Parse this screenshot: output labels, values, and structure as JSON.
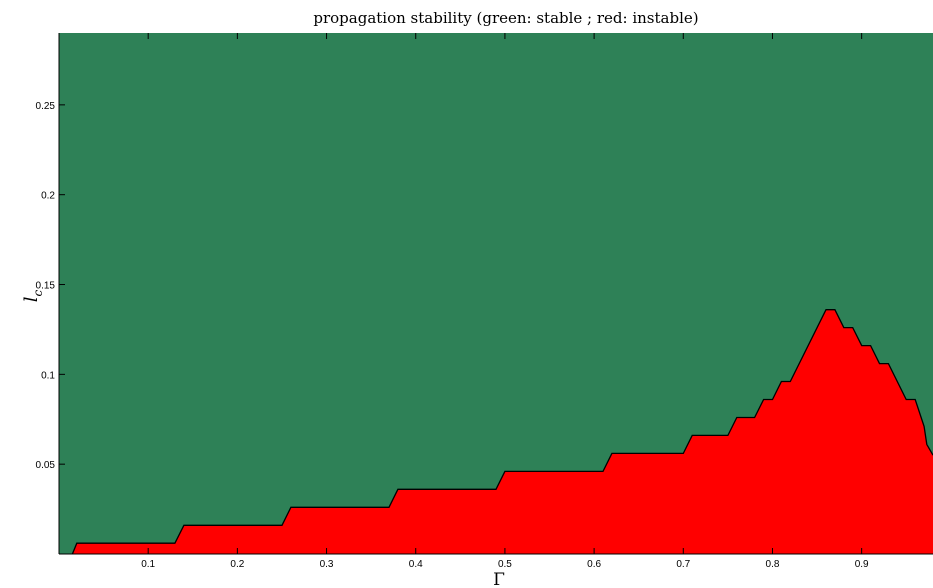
{
  "chart_data": {
    "type": "area",
    "title": "propagation stability (green: stable ; red: instable)",
    "xlabel": "Γ",
    "ylabel": "l",
    "ylabel_subscript": "c",
    "xlim": [
      0,
      0.98
    ],
    "ylim": [
      0,
      0.29
    ],
    "xticks": [
      0.1,
      0.2,
      0.3,
      0.4,
      0.5,
      0.6,
      0.7,
      0.8,
      0.9
    ],
    "xtick_labels": [
      "0.1",
      "0.2",
      "0.3",
      "0.4",
      "0.5",
      "0.6",
      "0.7",
      "0.8",
      "0.9"
    ],
    "yticks": [
      0.05,
      0.1,
      0.15,
      0.2,
      0.25
    ],
    "ytick_labels": [
      "0.05",
      "0.1",
      "0.15",
      "0.2",
      "0.25"
    ],
    "grid": false,
    "colors": {
      "stable": "#2e8157",
      "instable": "#ff0000",
      "boundary": "#000000"
    },
    "series": [
      {
        "values_kind": "stability boundary",
        "points": [
          [
            0.015,
            0
          ],
          [
            0.02,
            0.006
          ],
          [
            0.13,
            0.006
          ],
          [
            0.14,
            0.016
          ],
          [
            0.25,
            0.016
          ],
          [
            0.26,
            0.026
          ],
          [
            0.37,
            0.026
          ],
          [
            0.38,
            0.036
          ],
          [
            0.49,
            0.036
          ],
          [
            0.5,
            0.046
          ],
          [
            0.61,
            0.046
          ],
          [
            0.62,
            0.056
          ],
          [
            0.7,
            0.056
          ],
          [
            0.71,
            0.066
          ],
          [
            0.75,
            0.066
          ],
          [
            0.76,
            0.076
          ],
          [
            0.78,
            0.076
          ],
          [
            0.79,
            0.086
          ],
          [
            0.8,
            0.086
          ],
          [
            0.81,
            0.096
          ],
          [
            0.82,
            0.096
          ],
          [
            0.86,
            0.136
          ],
          [
            0.87,
            0.136
          ],
          [
            0.88,
            0.126
          ],
          [
            0.89,
            0.126
          ],
          [
            0.9,
            0.116
          ],
          [
            0.91,
            0.116
          ],
          [
            0.92,
            0.106
          ],
          [
            0.93,
            0.106
          ],
          [
            0.95,
            0.086
          ],
          [
            0.96,
            0.086
          ],
          [
            0.97,
            0.071
          ],
          [
            0.973,
            0.061
          ],
          [
            0.98,
            0.055
          ]
        ]
      }
    ]
  }
}
